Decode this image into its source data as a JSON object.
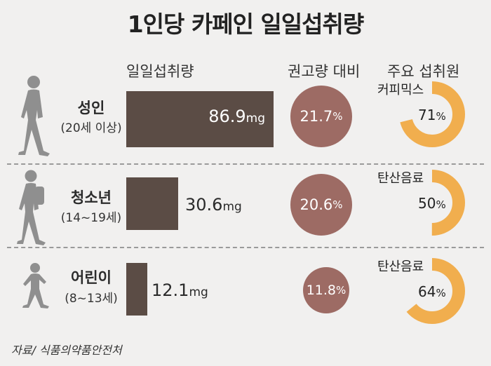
{
  "title": "1인당 카페인 일일섭취량",
  "headers": {
    "intake": "일일섭취량",
    "ratio": "권고량 대비",
    "source": "주요 섭취원"
  },
  "chart_data": {
    "type": "bar",
    "title": "1인당 카페인 일일섭취량",
    "categories": [
      "성인 (20세 이상)",
      "청소년 (14~19세)",
      "어린이 (8~13세)"
    ],
    "series": [
      {
        "name": "일일섭취량",
        "unit": "mg",
        "values": [
          86.9,
          30.6,
          12.1
        ]
      },
      {
        "name": "권고량 대비",
        "unit": "%",
        "values": [
          21.7,
          20.6,
          11.8
        ]
      },
      {
        "name": "주요 섭취원",
        "unit": "%",
        "values": [
          71,
          50,
          64
        ]
      }
    ]
  },
  "groups": [
    {
      "name": "성인",
      "age": "(20세 이상)",
      "intake": "86.9",
      "unit": "mg",
      "ratio": "21.7",
      "ratio_unit": "%",
      "source": "커피믹스",
      "source_pct": "71",
      "source_fraction": 0.71
    },
    {
      "name": "청소년",
      "age": "(14~19세)",
      "intake": "30.6",
      "unit": "mg",
      "ratio": "20.6",
      "ratio_unit": "%",
      "source": "탄산음료",
      "source_pct": "50",
      "source_fraction": 0.5
    },
    {
      "name": "어린이",
      "age": "(8~13세)",
      "intake": "12.1",
      "unit": "mg",
      "ratio": "11.8",
      "ratio_unit": "%",
      "source": "탄산음료",
      "source_pct": "64",
      "source_fraction": 0.64
    }
  ],
  "footer": "자료/ 식품의약품안전처",
  "colors": {
    "bar": "#5b4c45",
    "circle": "#9d6b64",
    "donut": "#f1ae4e",
    "figure": "#8f8f8f",
    "background": "#f1f0ef"
  }
}
